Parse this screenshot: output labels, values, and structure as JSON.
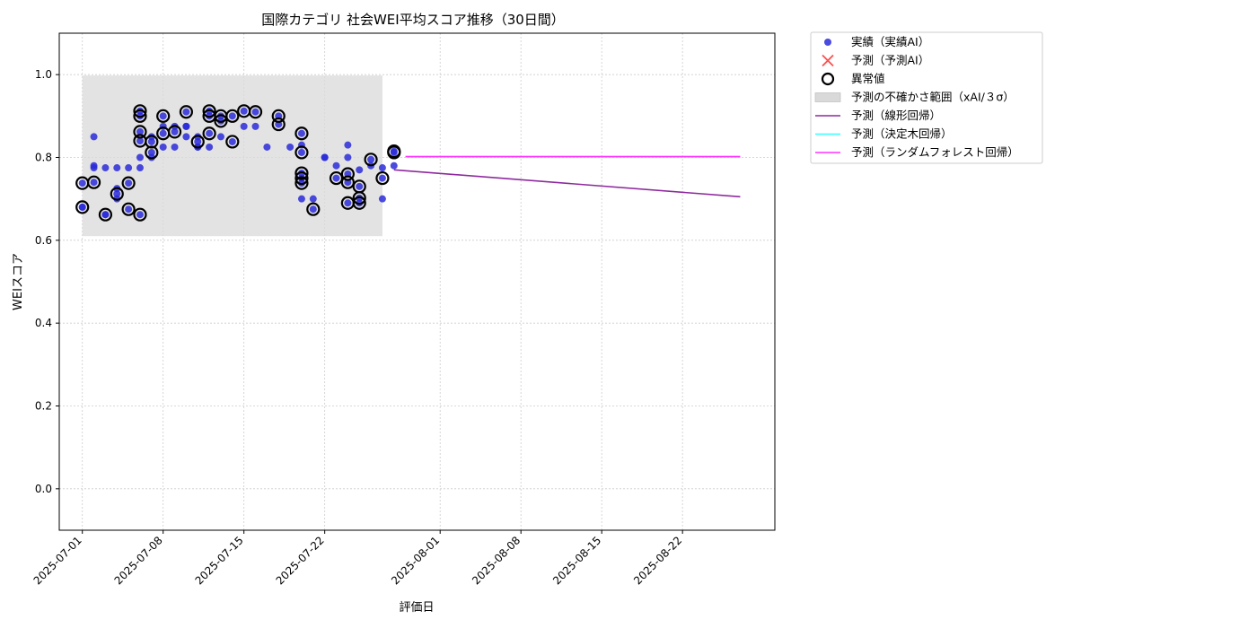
{
  "chart_data": {
    "type": "scatter",
    "title": "国際カテゴリ 社会WEI平均スコア推移（30日間）",
    "xlabel": "評価日",
    "ylabel": "WEIスコア",
    "xlim": [
      "2025-06-29",
      "2025-08-30"
    ],
    "ylim": [
      -0.1,
      1.1
    ],
    "x_ticks": [
      "2025-07-01",
      "2025-07-08",
      "2025-07-15",
      "2025-07-22",
      "2025-08-01",
      "2025-08-08",
      "2025-08-15",
      "2025-08-22"
    ],
    "y_ticks": [
      0.0,
      0.2,
      0.4,
      0.6,
      0.8,
      1.0
    ],
    "grid": true,
    "legend_position": "outside-right",
    "colors": {
      "actual": "#2b2bd9",
      "predicted_ai": "#ff4d4d",
      "anomaly": "#000000",
      "band": "#d9d9d9",
      "linear": "#8e2a9e",
      "tree": "#33ffff",
      "forest": "#ff33ff"
    },
    "band": {
      "x": [
        "2025-07-01",
        "2025-07-27"
      ],
      "y": [
        0.61,
        0.998
      ]
    },
    "series": [
      {
        "name": "実績（実績AI）",
        "kind": "scatter",
        "points": [
          [
            "2025-07-01",
            0.738
          ],
          [
            "2025-07-01",
            0.68
          ],
          [
            "2025-07-01",
            0.68
          ],
          [
            "2025-07-02",
            0.78
          ],
          [
            "2025-07-02",
            0.775
          ],
          [
            "2025-07-02",
            0.85
          ],
          [
            "2025-07-02",
            0.74
          ],
          [
            "2025-07-03",
            0.775
          ],
          [
            "2025-07-03",
            0.662
          ],
          [
            "2025-07-03",
            0.662
          ],
          [
            "2025-07-04",
            0.775
          ],
          [
            "2025-07-04",
            0.712
          ],
          [
            "2025-07-04",
            0.7
          ],
          [
            "2025-07-04",
            0.725
          ],
          [
            "2025-07-05",
            0.738
          ],
          [
            "2025-07-05",
            0.775
          ],
          [
            "2025-07-05",
            0.675
          ],
          [
            "2025-07-06",
            0.8
          ],
          [
            "2025-07-06",
            0.662
          ],
          [
            "2025-07-06",
            0.775
          ],
          [
            "2025-07-06",
            0.862
          ],
          [
            "2025-07-06",
            0.9
          ],
          [
            "2025-07-06",
            0.912
          ],
          [
            "2025-07-06",
            0.84
          ],
          [
            "2025-07-07",
            0.812
          ],
          [
            "2025-07-07",
            0.8
          ],
          [
            "2025-07-07",
            0.838
          ],
          [
            "2025-07-07",
            0.85
          ],
          [
            "2025-07-08",
            0.825
          ],
          [
            "2025-07-08",
            0.9
          ],
          [
            "2025-07-08",
            0.858
          ],
          [
            "2025-07-08",
            0.875
          ],
          [
            "2025-07-09",
            0.875
          ],
          [
            "2025-07-09",
            0.825
          ],
          [
            "2025-07-09",
            0.862
          ],
          [
            "2025-07-10",
            0.875
          ],
          [
            "2025-07-10",
            0.85
          ],
          [
            "2025-07-10",
            0.91
          ],
          [
            "2025-07-10",
            0.875
          ],
          [
            "2025-07-11",
            0.825
          ],
          [
            "2025-07-11",
            0.85
          ],
          [
            "2025-07-11",
            0.838
          ],
          [
            "2025-07-11",
            0.825
          ],
          [
            "2025-07-12",
            0.9
          ],
          [
            "2025-07-12",
            0.912
          ],
          [
            "2025-07-12",
            0.858
          ],
          [
            "2025-07-12",
            0.825
          ],
          [
            "2025-07-13",
            0.9
          ],
          [
            "2025-07-13",
            0.888
          ],
          [
            "2025-07-13",
            0.85
          ],
          [
            "2025-07-14",
            0.9
          ],
          [
            "2025-07-14",
            0.838
          ],
          [
            "2025-07-15",
            0.912
          ],
          [
            "2025-07-15",
            0.875
          ],
          [
            "2025-07-16",
            0.91
          ],
          [
            "2025-07-16",
            0.875
          ],
          [
            "2025-07-17",
            0.825
          ],
          [
            "2025-07-18",
            0.9
          ],
          [
            "2025-07-18",
            0.88
          ],
          [
            "2025-07-19",
            0.825
          ],
          [
            "2025-07-20",
            0.858
          ],
          [
            "2025-07-20",
            0.83
          ],
          [
            "2025-07-20",
            0.812
          ],
          [
            "2025-07-20",
            0.762
          ],
          [
            "2025-07-20",
            0.738
          ],
          [
            "2025-07-20",
            0.7
          ],
          [
            "2025-07-20",
            0.75
          ],
          [
            "2025-07-21",
            0.7
          ],
          [
            "2025-07-21",
            0.675
          ],
          [
            "2025-07-22",
            0.8
          ],
          [
            "2025-07-22",
            0.8
          ],
          [
            "2025-07-23",
            0.78
          ],
          [
            "2025-07-23",
            0.75
          ],
          [
            "2025-07-24",
            0.83
          ],
          [
            "2025-07-24",
            0.8
          ],
          [
            "2025-07-24",
            0.76
          ],
          [
            "2025-07-24",
            0.74
          ],
          [
            "2025-07-24",
            0.69
          ],
          [
            "2025-07-25",
            0.77
          ],
          [
            "2025-07-25",
            0.73
          ],
          [
            "2025-07-25",
            0.69
          ],
          [
            "2025-07-25",
            0.702
          ],
          [
            "2025-07-26",
            0.78
          ],
          [
            "2025-07-26",
            0.795
          ],
          [
            "2025-07-27",
            0.775
          ],
          [
            "2025-07-27",
            0.75
          ],
          [
            "2025-07-27",
            0.7
          ],
          [
            "2025-07-28",
            0.78
          ],
          [
            "2025-07-28",
            0.812
          ],
          [
            "2025-07-28",
            0.815
          ]
        ]
      },
      {
        "name": "予測（予測AI）",
        "kind": "scatter-x",
        "points": []
      },
      {
        "name": "異常値",
        "kind": "ring",
        "points": [
          [
            "2025-07-01",
            0.738
          ],
          [
            "2025-07-01",
            0.68
          ],
          [
            "2025-07-02",
            0.74
          ],
          [
            "2025-07-03",
            0.662
          ],
          [
            "2025-07-04",
            0.712
          ],
          [
            "2025-07-05",
            0.738
          ],
          [
            "2025-07-05",
            0.675
          ],
          [
            "2025-07-06",
            0.662
          ],
          [
            "2025-07-06",
            0.862
          ],
          [
            "2025-07-06",
            0.9
          ],
          [
            "2025-07-06",
            0.912
          ],
          [
            "2025-07-06",
            0.84
          ],
          [
            "2025-07-07",
            0.812
          ],
          [
            "2025-07-07",
            0.838
          ],
          [
            "2025-07-08",
            0.9
          ],
          [
            "2025-07-08",
            0.858
          ],
          [
            "2025-07-09",
            0.862
          ],
          [
            "2025-07-10",
            0.91
          ],
          [
            "2025-07-11",
            0.838
          ],
          [
            "2025-07-12",
            0.9
          ],
          [
            "2025-07-12",
            0.912
          ],
          [
            "2025-07-12",
            0.858
          ],
          [
            "2025-07-13",
            0.9
          ],
          [
            "2025-07-13",
            0.888
          ],
          [
            "2025-07-14",
            0.9
          ],
          [
            "2025-07-14",
            0.838
          ],
          [
            "2025-07-15",
            0.912
          ],
          [
            "2025-07-16",
            0.91
          ],
          [
            "2025-07-18",
            0.9
          ],
          [
            "2025-07-18",
            0.88
          ],
          [
            "2025-07-20",
            0.858
          ],
          [
            "2025-07-20",
            0.812
          ],
          [
            "2025-07-20",
            0.762
          ],
          [
            "2025-07-20",
            0.738
          ],
          [
            "2025-07-20",
            0.75
          ],
          [
            "2025-07-21",
            0.675
          ],
          [
            "2025-07-23",
            0.75
          ],
          [
            "2025-07-24",
            0.76
          ],
          [
            "2025-07-24",
            0.74
          ],
          [
            "2025-07-24",
            0.69
          ],
          [
            "2025-07-25",
            0.73
          ],
          [
            "2025-07-25",
            0.69
          ],
          [
            "2025-07-25",
            0.702
          ],
          [
            "2025-07-26",
            0.795
          ],
          [
            "2025-07-27",
            0.75
          ],
          [
            "2025-07-28",
            0.812
          ],
          [
            "2025-07-28",
            0.815
          ]
        ]
      },
      {
        "name": "予測の不確かさ範囲（xAI/３σ）",
        "kind": "band"
      },
      {
        "name": "予測（線形回帰）",
        "kind": "line",
        "points": [
          [
            "2025-07-28",
            0.77
          ],
          [
            "2025-08-27",
            0.705
          ]
        ]
      },
      {
        "name": "予測（決定木回帰）",
        "kind": "line",
        "points": [
          [
            "2025-07-29",
            0.802
          ],
          [
            "2025-08-27",
            0.802
          ]
        ]
      },
      {
        "name": "予測（ランダムフォレスト回帰）",
        "kind": "line",
        "points": [
          [
            "2025-07-29",
            0.802
          ],
          [
            "2025-08-27",
            0.802
          ]
        ]
      }
    ]
  }
}
